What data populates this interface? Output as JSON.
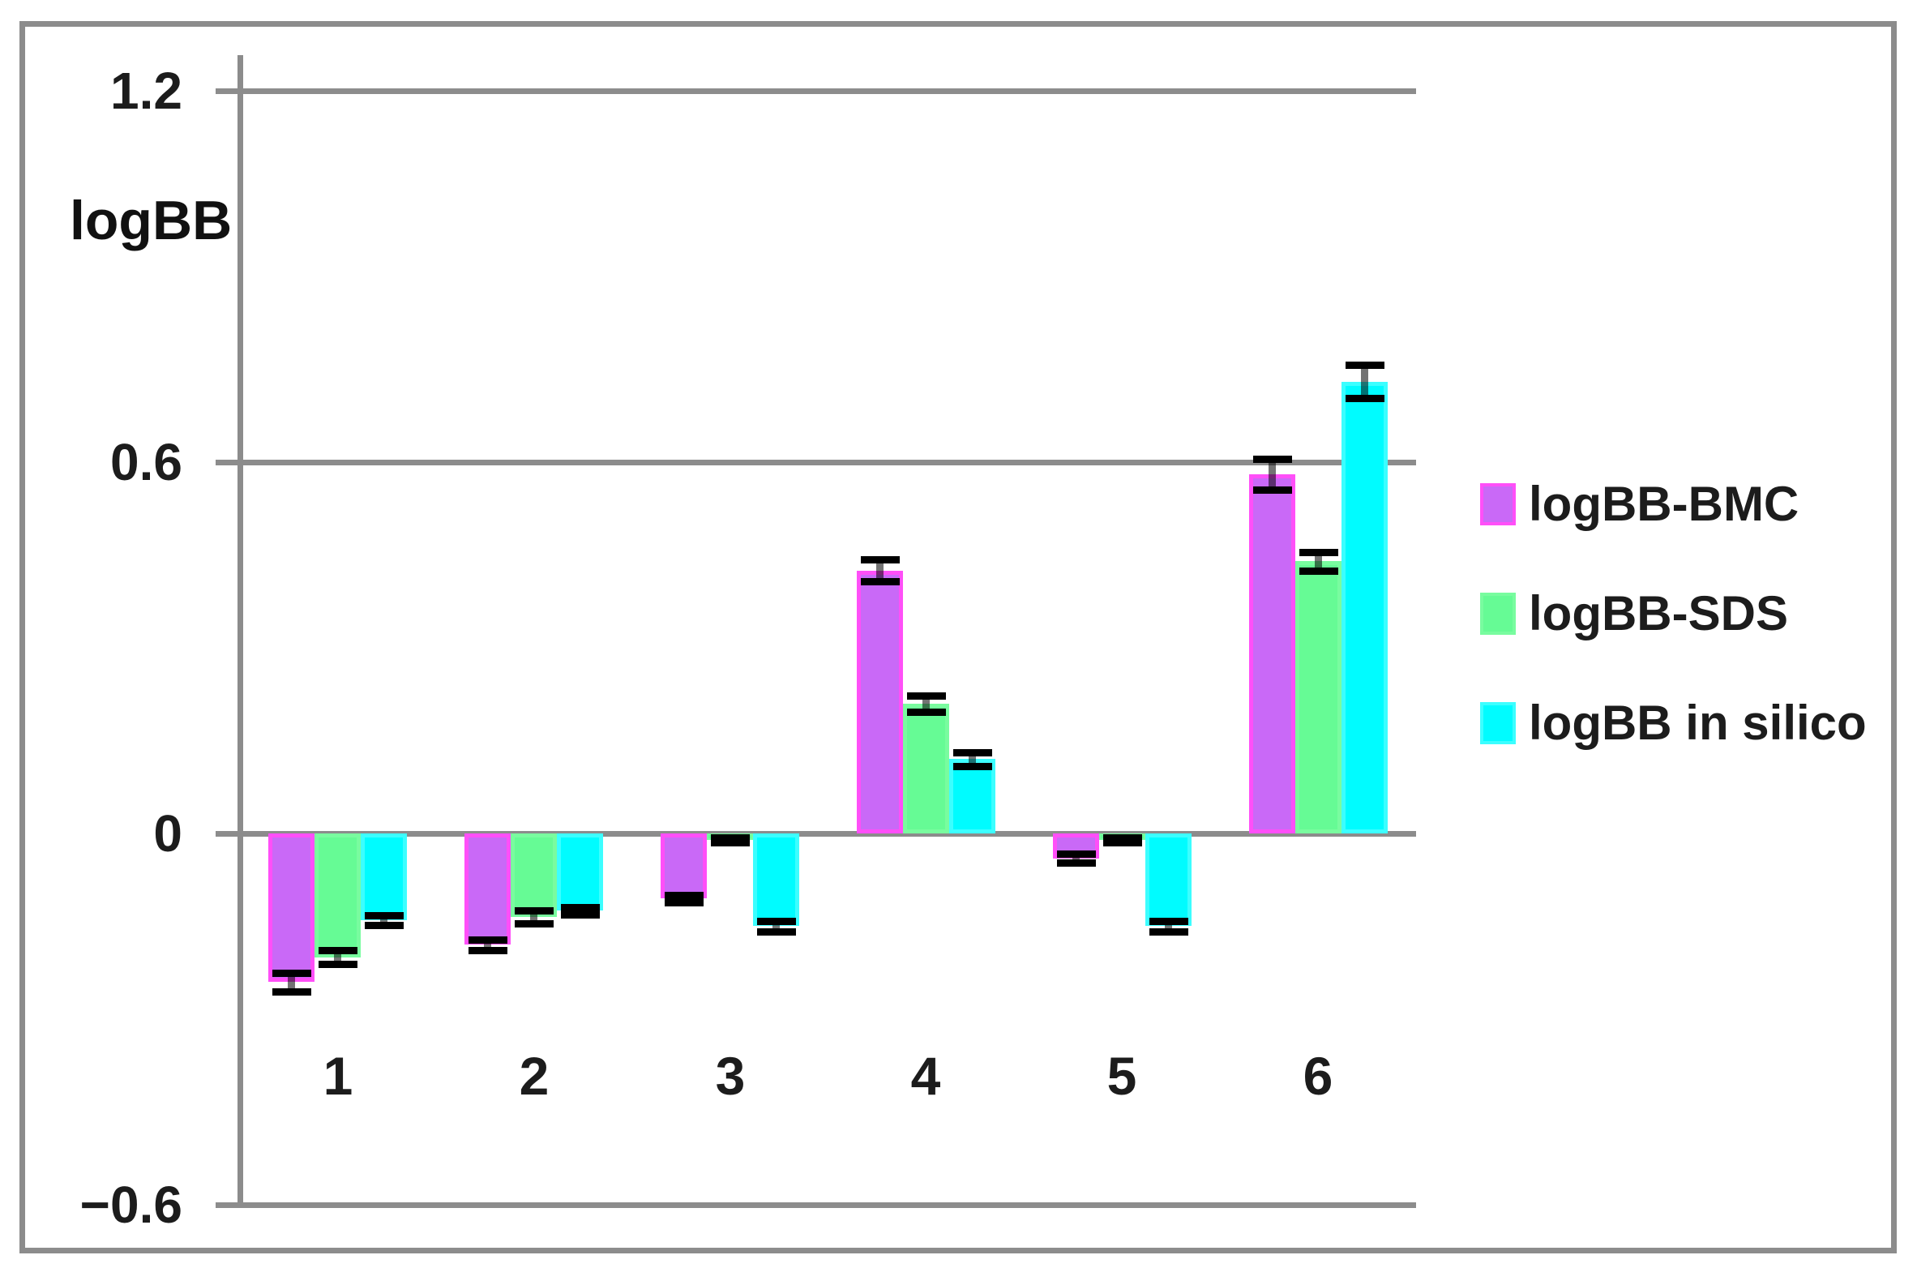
{
  "chart_data": {
    "type": "bar",
    "title": "",
    "ylabel": "logBB",
    "categories": [
      "1",
      "2",
      "3",
      "4",
      "5",
      "6"
    ],
    "ylim": [
      -0.6,
      1.2
    ],
    "y_ticks": [
      {
        "label": "1.2",
        "value": 1.2
      },
      {
        "label": "0.6",
        "value": 0.6
      },
      {
        "label": "0",
        "value": 0
      },
      {
        "label": "−0.6",
        "value": -0.6
      }
    ],
    "grid": "horizontal",
    "legend_position": "right",
    "error_bars": true,
    "error_bar_color": "#000000",
    "axis_color": "#8C8C8C",
    "frame_color": "#8C8C8C",
    "text_color": "#1C1C1C",
    "background": "#FFFFFF",
    "series": [
      {
        "name": "logBB-BMC",
        "fill": "#C969F7",
        "border": "#FF4FF8",
        "values": [
          -0.24,
          -0.18,
          -0.105,
          0.425,
          -0.04,
          0.58
        ],
        "errors": [
          0.015,
          0.009,
          0.006,
          0.018,
          0.007,
          0.025
        ]
      },
      {
        "name": "logBB-SDS",
        "fill": "#66FB95",
        "border": "#79FC9F",
        "values": [
          -0.2,
          -0.135,
          -0.01,
          0.21,
          -0.01,
          0.44
        ],
        "errors": [
          0.011,
          0.01,
          0.004,
          0.013,
          0.004,
          0.015
        ]
      },
      {
        "name": "logBB in silico",
        "fill": "#00FCFF",
        "border": "#3CFEFF",
        "values": [
          -0.14,
          -0.125,
          -0.15,
          0.12,
          -0.15,
          0.73
        ],
        "errors": [
          0.008,
          0.006,
          0.008,
          0.011,
          0.009,
          0.027
        ]
      }
    ]
  }
}
